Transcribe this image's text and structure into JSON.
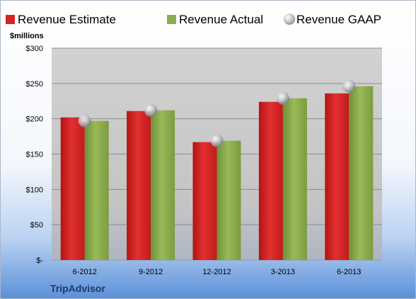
{
  "chart_data": {
    "type": "bar",
    "company": "TripAdvisor",
    "unit_label": "$millions",
    "categories": [
      "6-2012",
      "9-2012",
      "12-2012",
      "3-2013",
      "6-2013"
    ],
    "series": [
      {
        "name": "Revenue Estimate",
        "type": "bar",
        "color": "#cc1f1f",
        "values": [
          202,
          211,
          167,
          224,
          236
        ]
      },
      {
        "name": "Revenue Actual",
        "type": "bar",
        "color": "#86a84a",
        "values": [
          197,
          212,
          169,
          229,
          246
        ]
      },
      {
        "name": "Revenue GAAP",
        "type": "marker",
        "color": "#c0c4cc",
        "values": [
          197,
          212,
          169,
          229,
          246
        ]
      }
    ],
    "ylim": [
      0,
      300
    ],
    "yticks": [
      0,
      50,
      100,
      150,
      200,
      250,
      300
    ],
    "ytick_labels": [
      "$-",
      "$50",
      "$100",
      "$150",
      "$200",
      "$250",
      "$300"
    ],
    "legend_position": "top",
    "grid": true
  }
}
